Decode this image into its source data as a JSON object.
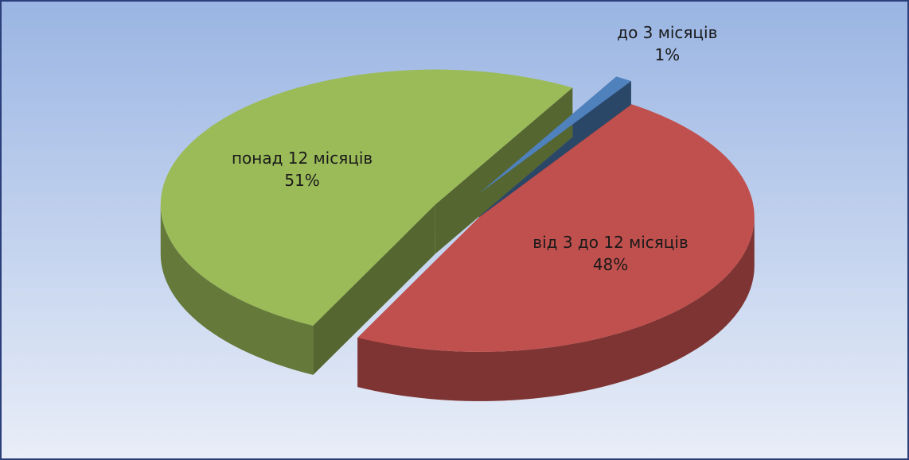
{
  "chart_data": {
    "type": "pie",
    "categories": [
      "до 3 місяців",
      "від 3 до 12 місяців",
      "понад 12 місяців"
    ],
    "values": [
      1,
      48,
      51
    ],
    "value_labels": [
      "1%",
      "48%",
      "51%"
    ],
    "colors": [
      "#4f81bd",
      "#c0504d",
      "#9bbb59"
    ]
  }
}
